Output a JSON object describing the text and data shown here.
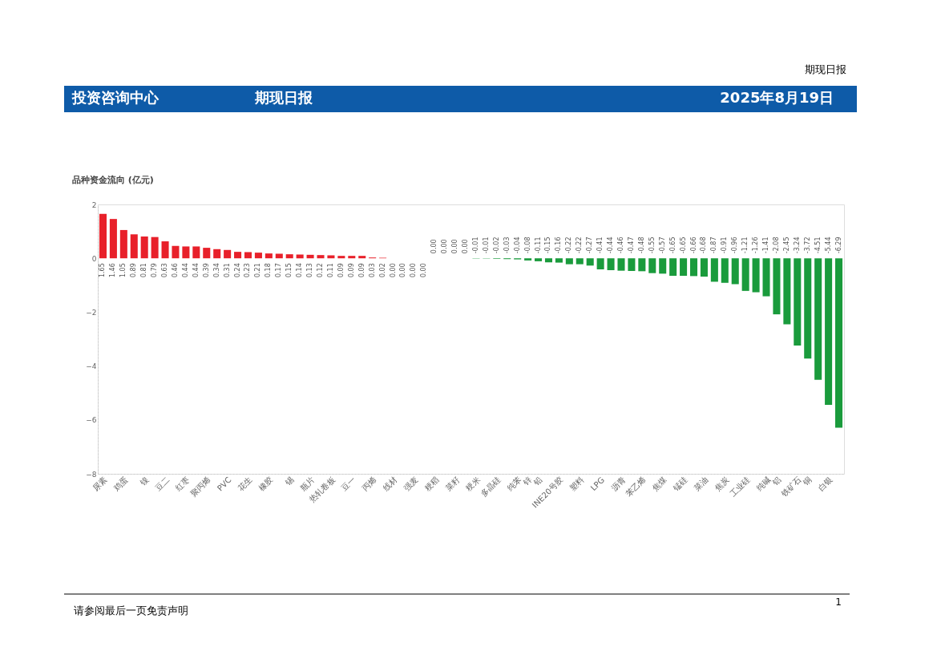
{
  "chart_data": {
    "type": "bar",
    "title": "品种资金流向 (亿元)",
    "categories": [
      "尿素",
      null,
      "鸡蛋",
      null,
      "镍",
      null,
      "豆二",
      null,
      "红枣",
      null,
      "聚丙烯",
      null,
      "PVC",
      null,
      "花生",
      null,
      "橡胶",
      null,
      "锡",
      null,
      "瓶片",
      null,
      "热轧卷板",
      null,
      "豆一",
      null,
      "丙烯",
      null,
      "线材",
      null,
      "强麦",
      null,
      "粳稻",
      null,
      "菜籽",
      null,
      "粳米",
      null,
      "多晶硅",
      null,
      "纯苯",
      "锌",
      "铅",
      null,
      "INE20号胶",
      null,
      "塑料",
      null,
      "LPG",
      null,
      "沥青",
      null,
      "苯乙烯",
      null,
      "焦煤",
      null,
      "锰硅",
      null,
      "菜油",
      null,
      "焦炭",
      null,
      "工业硅",
      null,
      "纯碱",
      "铝",
      null,
      "铁矿石",
      "铜",
      null,
      "白银",
      null
    ],
    "values": [
      1.65,
      1.46,
      1.05,
      0.89,
      0.81,
      0.79,
      0.63,
      0.46,
      0.44,
      0.44,
      0.39,
      0.34,
      0.31,
      0.24,
      0.23,
      0.21,
      0.18,
      0.17,
      0.15,
      0.14,
      0.13,
      0.12,
      0.11,
      0.09,
      0.09,
      0.09,
      0.03,
      0.02,
      0.0,
      0.0,
      0.0,
      0.0,
      0.0,
      0.0,
      0.0,
      0.0,
      -0.01,
      -0.01,
      -0.02,
      -0.03,
      -0.04,
      -0.08,
      -0.11,
      -0.15,
      -0.16,
      -0.22,
      -0.22,
      -0.27,
      -0.41,
      -0.44,
      -0.46,
      -0.47,
      -0.48,
      -0.55,
      -0.57,
      -0.65,
      -0.65,
      -0.66,
      -0.68,
      -0.87,
      -0.91,
      -0.96,
      -1.21,
      -1.26,
      -1.41,
      -2.08,
      -2.45,
      -3.24,
      -3.72,
      -4.51,
      -5.44,
      -6.29
    ],
    "value_labels": [
      "1.65",
      "1.46",
      "1.05",
      "0.89",
      "0.81",
      "0.79",
      "0.63",
      "0.46",
      "0.44",
      "0.44",
      "0.39",
      "0.34",
      "0.31",
      "0.24",
      "0.23",
      "0.21",
      "0.18",
      "0.17",
      "0.15",
      "0.14",
      "0.13",
      "0.12",
      "0.11",
      "0.09",
      "0.09",
      "0.09",
      "0.03",
      "0.02",
      "0.00",
      "0.00",
      "0.00",
      "0.00",
      "0.00",
      "0.00",
      "0.00",
      "0.00",
      "-0.01",
      "-0.01",
      "-0.02",
      "-0.03",
      "-0.04",
      "-0.08",
      "-0.11",
      "-0.15",
      "-0.16",
      "-0.22",
      "-0.22",
      "-0.27",
      "-0.41",
      "-0.44",
      "-0.46",
      "-0.47",
      "-0.48",
      "-0.55",
      "-0.57",
      "-0.65",
      "-0.65",
      "-0.66",
      "-0.68",
      "-0.87",
      "-0.91",
      "-0.96",
      "-1.21",
      "-1.26",
      "-1.41",
      "-2.08",
      "-2.45",
      "-3.24",
      "-3.72",
      "-4.51",
      "-5.44",
      "-6.29"
    ],
    "colors": [
      "#e8202a",
      "#e8202a",
      "#e8202a",
      "#e8202a",
      "#e8202a",
      "#e8202a",
      "#e8202a",
      "#e8202a",
      "#e8202a",
      "#e8202a",
      "#e8202a",
      "#e8202a",
      "#e8202a",
      "#e8202a",
      "#e8202a",
      "#e8202a",
      "#e8202a",
      "#e8202a",
      "#e8202a",
      "#e8202a",
      "#e8202a",
      "#e8202a",
      "#e8202a",
      "#e8202a",
      "#e8202a",
      "#e8202a",
      "#e8202a",
      "#e8202a",
      "#e8202a",
      "#e8202a",
      "#e8202a",
      "#e8202a",
      "#1a9b3c",
      "#1a9b3c",
      "#1a9b3c",
      "#1a9b3c",
      "#1a9b3c",
      "#1a9b3c",
      "#1a9b3c",
      "#1a9b3c",
      "#1a9b3c",
      "#1a9b3c",
      "#1a9b3c",
      "#1a9b3c",
      "#1a9b3c",
      "#1a9b3c",
      "#1a9b3c",
      "#1a9b3c",
      "#1a9b3c",
      "#1a9b3c",
      "#1a9b3c",
      "#1a9b3c",
      "#1a9b3c",
      "#1a9b3c",
      "#1a9b3c",
      "#1a9b3c",
      "#1a9b3c",
      "#1a9b3c",
      "#1a9b3c",
      "#1a9b3c",
      "#1a9b3c",
      "#1a9b3c",
      "#1a9b3c",
      "#1a9b3c",
      "#1a9b3c",
      "#1a9b3c",
      "#1a9b3c",
      "#1a9b3c",
      "#1a9b3c",
      "#1a9b3c",
      "#1a9b3c",
      "#1a9b3c"
    ],
    "ylim": [
      -8,
      2
    ],
    "yticks": [
      -8,
      -6,
      -4,
      -2,
      0,
      2
    ],
    "grid": false,
    "annotations": [
      "期现日报",
      "投资咨询中心",
      "期现日报",
      "2025年8月19日",
      "请参阅最后一页免责声明",
      "1"
    ]
  }
}
